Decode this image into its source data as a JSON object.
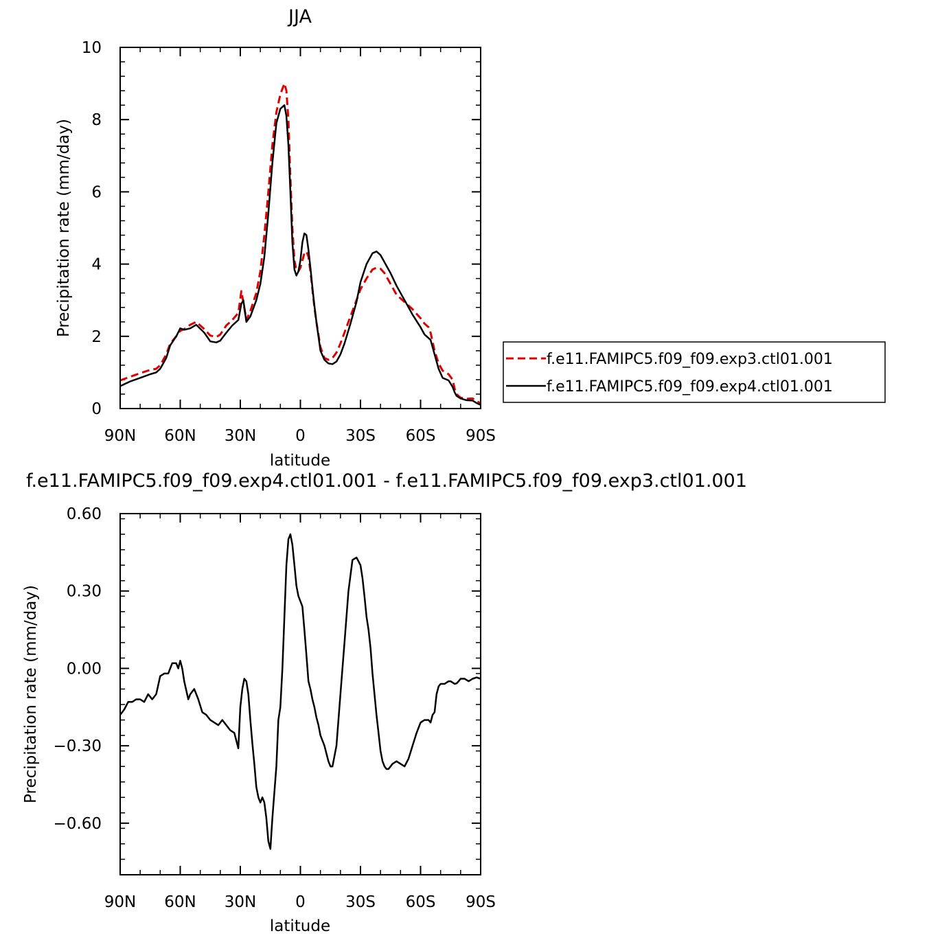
{
  "chart_data": [
    {
      "type": "line",
      "title": "JJA",
      "xlabel": "latitude",
      "ylabel": "Precipitation rate (mm/day)",
      "xlim": [
        90,
        -90
      ],
      "ylim": [
        0,
        10
      ],
      "x_ticks": [
        90,
        60,
        30,
        0,
        -30,
        -60,
        -90
      ],
      "x_tick_labels": [
        "90N",
        "60N",
        "30N",
        "0",
        "30S",
        "60S",
        "90S"
      ],
      "y_ticks": [
        0,
        2,
        4,
        6,
        8,
        10
      ],
      "y_tick_labels": [
        "0",
        "2",
        "4",
        "6",
        "8",
        "10"
      ],
      "legend_position": "right",
      "grid": false,
      "series": [
        {
          "name": "f.e11.FAMIPC5.f09_f09.exp3.ctl01.001",
          "color": "#e00000",
          "style": "dashed",
          "x": [
            90,
            85,
            80,
            75,
            72,
            70,
            67,
            65,
            62,
            60,
            58,
            55,
            52,
            48,
            45,
            42,
            40,
            37,
            34,
            31,
            29.5,
            28.5,
            27,
            25,
            22,
            20,
            18,
            16,
            14,
            12,
            10,
            8,
            7,
            6,
            5,
            4,
            3,
            2,
            1,
            0,
            -1,
            -2,
            -3,
            -4,
            -5,
            -6,
            -7,
            -8,
            -10,
            -12,
            -14,
            -16,
            -18,
            -20,
            -22,
            -25,
            -28,
            -30,
            -33,
            -36,
            -38,
            -40,
            -42,
            -45,
            -48,
            -52,
            -56,
            -60,
            -62,
            -64,
            -65,
            -67,
            -69,
            -71,
            -74,
            -76,
            -77,
            -78,
            -80,
            -83,
            -86,
            -88,
            -90
          ],
          "y": [
            0.78,
            0.88,
            0.98,
            1.07,
            1.1,
            1.2,
            1.5,
            1.8,
            2.0,
            2.15,
            2.2,
            2.32,
            2.4,
            2.2,
            2.02,
            1.98,
            2.05,
            2.3,
            2.45,
            2.65,
            3.25,
            2.95,
            2.45,
            2.7,
            3.2,
            3.8,
            4.8,
            6.0,
            7.3,
            8.2,
            8.7,
            9.0,
            8.8,
            8.0,
            6.4,
            5.0,
            4.1,
            3.82,
            3.8,
            3.9,
            4.1,
            4.3,
            4.35,
            4.2,
            3.8,
            3.3,
            2.8,
            2.4,
            1.7,
            1.4,
            1.35,
            1.4,
            1.55,
            1.8,
            2.1,
            2.55,
            3.0,
            3.3,
            3.6,
            3.85,
            3.9,
            3.87,
            3.75,
            3.45,
            3.15,
            2.95,
            2.75,
            2.5,
            2.35,
            2.25,
            2.1,
            1.6,
            1.25,
            1.05,
            0.95,
            0.8,
            0.55,
            0.4,
            0.3,
            0.27,
            0.28,
            0.2,
            0.15
          ]
        },
        {
          "name": "f.e11.FAMIPC5.f09_f09.exp4.ctl01.001",
          "color": "#000000",
          "style": "solid",
          "x": [
            90,
            85,
            80,
            75,
            72,
            70,
            67,
            65,
            62,
            60,
            58,
            55,
            52,
            48,
            45,
            42,
            40,
            37,
            34,
            31,
            29.5,
            28.5,
            27,
            25,
            22,
            20,
            18,
            16,
            14,
            12,
            10,
            8,
            7,
            6,
            5,
            4,
            3,
            2,
            1,
            0,
            -1,
            -2,
            -3,
            -4,
            -5,
            -6,
            -7,
            -8,
            -10,
            -12,
            -14,
            -16,
            -18,
            -20,
            -22,
            -25,
            -28,
            -30,
            -33,
            -36,
            -38,
            -40,
            -42,
            -45,
            -48,
            -52,
            -56,
            -60,
            -62,
            -64,
            -65,
            -67,
            -69,
            -71,
            -74,
            -76,
            -77,
            -78,
            -80,
            -83,
            -86,
            -88,
            -90
          ],
          "y": [
            0.62,
            0.75,
            0.85,
            0.95,
            1.0,
            1.1,
            1.4,
            1.75,
            2.0,
            2.22,
            2.18,
            2.22,
            2.32,
            2.1,
            1.86,
            1.83,
            1.88,
            2.1,
            2.3,
            2.45,
            2.9,
            3.0,
            2.4,
            2.55,
            3.0,
            3.45,
            4.2,
            5.4,
            6.8,
            7.9,
            8.3,
            8.4,
            8.1,
            7.3,
            6.0,
            4.6,
            3.85,
            3.68,
            3.8,
            4.1,
            4.6,
            4.85,
            4.8,
            4.4,
            3.9,
            3.35,
            2.85,
            2.4,
            1.6,
            1.35,
            1.25,
            1.23,
            1.3,
            1.5,
            1.8,
            2.35,
            2.95,
            3.5,
            4.0,
            4.3,
            4.35,
            4.25,
            4.05,
            3.75,
            3.4,
            3.0,
            2.6,
            2.25,
            2.05,
            1.95,
            1.9,
            1.5,
            1.1,
            0.85,
            0.78,
            0.6,
            0.45,
            0.35,
            0.28,
            0.23,
            0.22,
            0.15,
            0.1
          ]
        }
      ]
    },
    {
      "type": "line",
      "title": "f.e11.FAMIPC5.f09_f09.exp4.ctl01.001 - f.e11.FAMIPC5.f09_f09.exp3.ctl01.001",
      "xlabel": "latitude",
      "ylabel": "Precipitation rate (mm/day)",
      "xlim": [
        90,
        -90
      ],
      "ylim": [
        -0.8,
        0.6
      ],
      "x_ticks": [
        90,
        60,
        30,
        0,
        -30,
        -60,
        -90
      ],
      "x_tick_labels": [
        "90N",
        "60N",
        "30N",
        "0",
        "30S",
        "60S",
        "90S"
      ],
      "y_ticks": [
        0.6,
        0.3,
        0.0,
        -0.3,
        -0.6
      ],
      "y_tick_labels": [
        "0.60",
        "0.30",
        "0.00",
        "-0.30",
        "-0.60"
      ],
      "grid": false,
      "series": [
        {
          "name": "",
          "color": "#000000",
          "style": "solid",
          "x": [
            90,
            88,
            86,
            84,
            82,
            80,
            78,
            76,
            74,
            72,
            70,
            68,
            66,
            64,
            62,
            61,
            60,
            59,
            58,
            56,
            55,
            53,
            51,
            49,
            47,
            45,
            43,
            41,
            39,
            37,
            35,
            33,
            31,
            30,
            29,
            28,
            27,
            26,
            25,
            24,
            23,
            22,
            21,
            20,
            19,
            18,
            17,
            16,
            15,
            14,
            12,
            11,
            10,
            9,
            8,
            7,
            6,
            5,
            4,
            3,
            2,
            1,
            0,
            -1,
            -2,
            -3,
            -4,
            -5,
            -6,
            -7,
            -8,
            -9,
            -10,
            -11,
            -12,
            -13,
            -14,
            -15,
            -16,
            -18,
            -20,
            -22,
            -24,
            -26,
            -28,
            -30,
            -31,
            -32,
            -33,
            -34,
            -35,
            -36,
            -37,
            -38,
            -39,
            -40,
            -41,
            -42,
            -43,
            -44,
            -45,
            -46,
            -48,
            -50,
            -52,
            -54,
            -56,
            -58,
            -60,
            -62,
            -64,
            -65,
            -66,
            -67,
            -68,
            -69,
            -70,
            -71,
            -72,
            -73,
            -74,
            -75,
            -76,
            -77,
            -78,
            -79,
            -80,
            -82,
            -84,
            -86,
            -88,
            -90
          ],
          "y": [
            -0.18,
            -0.16,
            -0.13,
            -0.13,
            -0.12,
            -0.12,
            -0.13,
            -0.1,
            -0.12,
            -0.1,
            -0.03,
            -0.02,
            -0.02,
            0.02,
            0.02,
            0.0,
            0.03,
            0.0,
            -0.05,
            -0.12,
            -0.1,
            -0.08,
            -0.12,
            -0.17,
            -0.18,
            -0.2,
            -0.21,
            -0.22,
            -0.2,
            -0.22,
            -0.24,
            -0.25,
            -0.31,
            -0.15,
            -0.08,
            -0.04,
            -0.05,
            -0.1,
            -0.2,
            -0.29,
            -0.37,
            -0.46,
            -0.5,
            -0.52,
            -0.5,
            -0.52,
            -0.58,
            -0.67,
            -0.7,
            -0.58,
            -0.38,
            -0.2,
            -0.15,
            0.0,
            0.2,
            0.4,
            0.5,
            0.52,
            0.48,
            0.4,
            0.32,
            0.28,
            0.26,
            0.24,
            0.15,
            0.05,
            -0.05,
            -0.08,
            -0.12,
            -0.15,
            -0.19,
            -0.22,
            -0.26,
            -0.28,
            -0.3,
            -0.33,
            -0.36,
            -0.38,
            -0.38,
            -0.3,
            -0.1,
            0.1,
            0.3,
            0.42,
            0.43,
            0.4,
            0.35,
            0.28,
            0.2,
            0.15,
            0.08,
            -0.02,
            -0.1,
            -0.18,
            -0.25,
            -0.32,
            -0.36,
            -0.38,
            -0.39,
            -0.39,
            -0.38,
            -0.37,
            -0.36,
            -0.37,
            -0.38,
            -0.35,
            -0.3,
            -0.25,
            -0.21,
            -0.2,
            -0.2,
            -0.21,
            -0.18,
            -0.17,
            -0.1,
            -0.07,
            -0.06,
            -0.06,
            -0.06,
            -0.055,
            -0.05,
            -0.05,
            -0.055,
            -0.06,
            -0.058,
            -0.05,
            -0.04,
            -0.04,
            -0.05,
            -0.04,
            -0.035,
            -0.04
          ]
        }
      ]
    }
  ]
}
